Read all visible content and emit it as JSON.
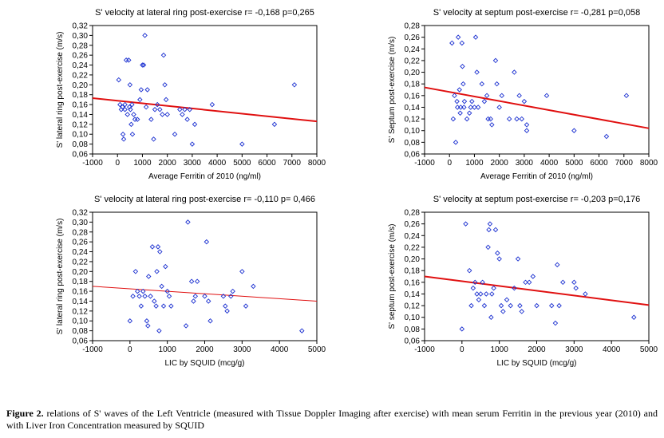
{
  "caption": {
    "label": "Figure 2.",
    "text": " relations of S' waves of the Left Ventricle (measured with Tissue Doppler Imaging after exercise) with mean serum Ferritin in the previous year (2010) and with Liver Iron Concentration measured by SQUID"
  },
  "chart_data": [
    {
      "type": "scatter",
      "title": "S' velocity at lateral ring post-exercise r= -0,168 p=0,265",
      "xlabel": "Average Ferritin of 2010 (ng/ml)",
      "ylabel": "S' lateral ring post-exercise (m/s)",
      "xlim": [
        -1000,
        8000
      ],
      "ylim": [
        0.06,
        0.32
      ],
      "xticks": [
        "-1000",
        "0",
        "1000",
        "2000",
        "3000",
        "4000",
        "5000",
        "6000",
        "7000",
        "8000"
      ],
      "yticks": [
        "0,06",
        "0,08",
        "0,10",
        "0,12",
        "0,14",
        "0,16",
        "0,18",
        "0,20",
        "0,22",
        "0,24",
        "0,26",
        "0,28",
        "0,30",
        "0,32"
      ],
      "trend": {
        "x": [
          -1000,
          8000
        ],
        "y": [
          0.173,
          0.126
        ],
        "width": 2
      },
      "points": [
        [
          50,
          0.21
        ],
        [
          100,
          0.16
        ],
        [
          150,
          0.15
        ],
        [
          200,
          0.155
        ],
        [
          220,
          0.1
        ],
        [
          250,
          0.09
        ],
        [
          300,
          0.15
        ],
        [
          300,
          0.16
        ],
        [
          350,
          0.25
        ],
        [
          400,
          0.14
        ],
        [
          450,
          0.25
        ],
        [
          480,
          0.155
        ],
        [
          500,
          0.2
        ],
        [
          520,
          0.15
        ],
        [
          550,
          0.12
        ],
        [
          580,
          0.16
        ],
        [
          600,
          0.1
        ],
        [
          650,
          0.14
        ],
        [
          700,
          0.13
        ],
        [
          800,
          0.13
        ],
        [
          900,
          0.17
        ],
        [
          950,
          0.19
        ],
        [
          1000,
          0.24
        ],
        [
          1050,
          0.24
        ],
        [
          1100,
          0.3
        ],
        [
          1150,
          0.155
        ],
        [
          1200,
          0.19
        ],
        [
          1350,
          0.13
        ],
        [
          1450,
          0.09
        ],
        [
          1500,
          0.15
        ],
        [
          1600,
          0.16
        ],
        [
          1700,
          0.15
        ],
        [
          1800,
          0.14
        ],
        [
          1850,
          0.26
        ],
        [
          1900,
          0.2
        ],
        [
          1950,
          0.17
        ],
        [
          2000,
          0.14
        ],
        [
          2300,
          0.1
        ],
        [
          2500,
          0.15
        ],
        [
          2600,
          0.14
        ],
        [
          2700,
          0.15
        ],
        [
          2800,
          0.13
        ],
        [
          2900,
          0.15
        ],
        [
          3000,
          0.08
        ],
        [
          3100,
          0.12
        ],
        [
          3800,
          0.16
        ],
        [
          5000,
          0.08
        ],
        [
          6300,
          0.12
        ],
        [
          7100,
          0.2
        ]
      ]
    },
    {
      "type": "scatter",
      "title": "S' velocity at septum post-exercise r= -0,281 p=0,058",
      "xlabel": "Average Ferritin of 2010 (ng/ml)",
      "ylabel": "S' Septum post-exercise (m/s)",
      "xlim": [
        -1000,
        8000
      ],
      "ylim": [
        0.06,
        0.28
      ],
      "xticks": [
        "-1000",
        "0",
        "1000",
        "2000",
        "3000",
        "4000",
        "5000",
        "6000",
        "7000",
        "8000"
      ],
      "yticks": [
        "0,06",
        "0,08",
        "0,10",
        "0,12",
        "0,14",
        "0,16",
        "0,18",
        "0,20",
        "0,22",
        "0,24",
        "0,26",
        "0,28"
      ],
      "trend": {
        "x": [
          -1000,
          8000
        ],
        "y": [
          0.174,
          0.104
        ],
        "width": 2
      },
      "points": [
        [
          100,
          0.25
        ],
        [
          150,
          0.12
        ],
        [
          200,
          0.16
        ],
        [
          250,
          0.08
        ],
        [
          300,
          0.15
        ],
        [
          320,
          0.14
        ],
        [
          350,
          0.26
        ],
        [
          400,
          0.17
        ],
        [
          430,
          0.13
        ],
        [
          450,
          0.14
        ],
        [
          500,
          0.25
        ],
        [
          520,
          0.21
        ],
        [
          550,
          0.18
        ],
        [
          580,
          0.14
        ],
        [
          600,
          0.15
        ],
        [
          700,
          0.12
        ],
        [
          800,
          0.13
        ],
        [
          850,
          0.14
        ],
        [
          900,
          0.15
        ],
        [
          1000,
          0.14
        ],
        [
          1050,
          0.26
        ],
        [
          1100,
          0.2
        ],
        [
          1150,
          0.14
        ],
        [
          1300,
          0.18
        ],
        [
          1400,
          0.15
        ],
        [
          1500,
          0.16
        ],
        [
          1550,
          0.12
        ],
        [
          1650,
          0.12
        ],
        [
          1700,
          0.11
        ],
        [
          1850,
          0.22
        ],
        [
          1900,
          0.18
        ],
        [
          2000,
          0.14
        ],
        [
          2100,
          0.16
        ],
        [
          2400,
          0.12
        ],
        [
          2600,
          0.2
        ],
        [
          2700,
          0.12
        ],
        [
          2800,
          0.16
        ],
        [
          2900,
          0.12
        ],
        [
          3000,
          0.15
        ],
        [
          3100,
          0.11
        ],
        [
          3100,
          0.1
        ],
        [
          3900,
          0.16
        ],
        [
          5000,
          0.1
        ],
        [
          6300,
          0.09
        ],
        [
          7100,
          0.16
        ]
      ]
    },
    {
      "type": "scatter",
      "title": "S' velocity at lateral ring post-exercise r= -0,110 p= 0,466",
      "xlabel": "LIC by SQUID (mcg/g)",
      "ylabel": "S' lateral ring post-exercise (m/s)",
      "xlim": [
        -1000,
        5000
      ],
      "ylim": [
        0.06,
        0.32
      ],
      "xticks": [
        "-1000",
        "0",
        "1000",
        "2000",
        "3000",
        "4000",
        "5000"
      ],
      "yticks": [
        "0,06",
        "0,08",
        "0,10",
        "0,12",
        "0,14",
        "0,16",
        "0,18",
        "0,20",
        "0,22",
        "0,24",
        "0,26",
        "0,28",
        "0,30",
        "0,32"
      ],
      "trend": {
        "x": [
          -1000,
          5000
        ],
        "y": [
          0.17,
          0.14
        ],
        "width": 1
      },
      "points": [
        [
          0,
          0.1
        ],
        [
          80,
          0.15
        ],
        [
          150,
          0.2
        ],
        [
          200,
          0.16
        ],
        [
          250,
          0.15
        ],
        [
          300,
          0.13
        ],
        [
          350,
          0.16
        ],
        [
          400,
          0.15
        ],
        [
          450,
          0.1
        ],
        [
          480,
          0.09
        ],
        [
          500,
          0.19
        ],
        [
          550,
          0.15
        ],
        [
          600,
          0.25
        ],
        [
          650,
          0.14
        ],
        [
          700,
          0.13
        ],
        [
          720,
          0.2
        ],
        [
          750,
          0.25
        ],
        [
          780,
          0.08
        ],
        [
          800,
          0.24
        ],
        [
          850,
          0.17
        ],
        [
          900,
          0.13
        ],
        [
          950,
          0.21
        ],
        [
          1000,
          0.16
        ],
        [
          1050,
          0.15
        ],
        [
          1100,
          0.13
        ],
        [
          1500,
          0.09
        ],
        [
          1550,
          0.3
        ],
        [
          1650,
          0.18
        ],
        [
          1700,
          0.14
        ],
        [
          1750,
          0.15
        ],
        [
          1800,
          0.18
        ],
        [
          2000,
          0.15
        ],
        [
          2050,
          0.26
        ],
        [
          2100,
          0.14
        ],
        [
          2150,
          0.1
        ],
        [
          2500,
          0.15
        ],
        [
          2550,
          0.13
        ],
        [
          2600,
          0.12
        ],
        [
          2700,
          0.15
        ],
        [
          2750,
          0.16
        ],
        [
          3000,
          0.2
        ],
        [
          3100,
          0.13
        ],
        [
          3300,
          0.17
        ],
        [
          4600,
          0.08
        ]
      ]
    },
    {
      "type": "scatter",
      "title": "S' velocity at septum post-exercise r= -0,203 p=0,176",
      "xlabel": "LIC by SQUID (mcg/g)",
      "ylabel": "S' septum post-exercise (m/s)",
      "xlim": [
        -1000,
        5000
      ],
      "ylim": [
        0.06,
        0.28
      ],
      "xticks": [
        "-1000",
        "0",
        "1000",
        "2000",
        "3000",
        "4000",
        "5000"
      ],
      "yticks": [
        "0,06",
        "0,08",
        "0,10",
        "0,12",
        "0,14",
        "0,16",
        "0,18",
        "0,20",
        "0,22",
        "0,24",
        "0,26",
        "0,28"
      ],
      "trend": {
        "x": [
          -1000,
          5000
        ],
        "y": [
          0.17,
          0.121
        ],
        "width": 2
      },
      "points": [
        [
          0,
          0.08
        ],
        [
          100,
          0.26
        ],
        [
          200,
          0.18
        ],
        [
          250,
          0.12
        ],
        [
          300,
          0.15
        ],
        [
          350,
          0.16
        ],
        [
          400,
          0.14
        ],
        [
          450,
          0.13
        ],
        [
          500,
          0.14
        ],
        [
          550,
          0.16
        ],
        [
          600,
          0.12
        ],
        [
          650,
          0.14
        ],
        [
          700,
          0.22
        ],
        [
          720,
          0.25
        ],
        [
          750,
          0.26
        ],
        [
          780,
          0.1
        ],
        [
          800,
          0.14
        ],
        [
          850,
          0.15
        ],
        [
          900,
          0.25
        ],
        [
          950,
          0.21
        ],
        [
          1000,
          0.2
        ],
        [
          1050,
          0.12
        ],
        [
          1100,
          0.11
        ],
        [
          1200,
          0.13
        ],
        [
          1300,
          0.12
        ],
        [
          1400,
          0.15
        ],
        [
          1500,
          0.2
        ],
        [
          1550,
          0.12
        ],
        [
          1600,
          0.11
        ],
        [
          1700,
          0.16
        ],
        [
          1800,
          0.16
        ],
        [
          1900,
          0.17
        ],
        [
          2000,
          0.12
        ],
        [
          2400,
          0.12
        ],
        [
          2500,
          0.09
        ],
        [
          2550,
          0.19
        ],
        [
          2600,
          0.12
        ],
        [
          2700,
          0.16
        ],
        [
          3000,
          0.16
        ],
        [
          3050,
          0.15
        ],
        [
          3300,
          0.14
        ],
        [
          4600,
          0.1
        ]
      ]
    }
  ]
}
